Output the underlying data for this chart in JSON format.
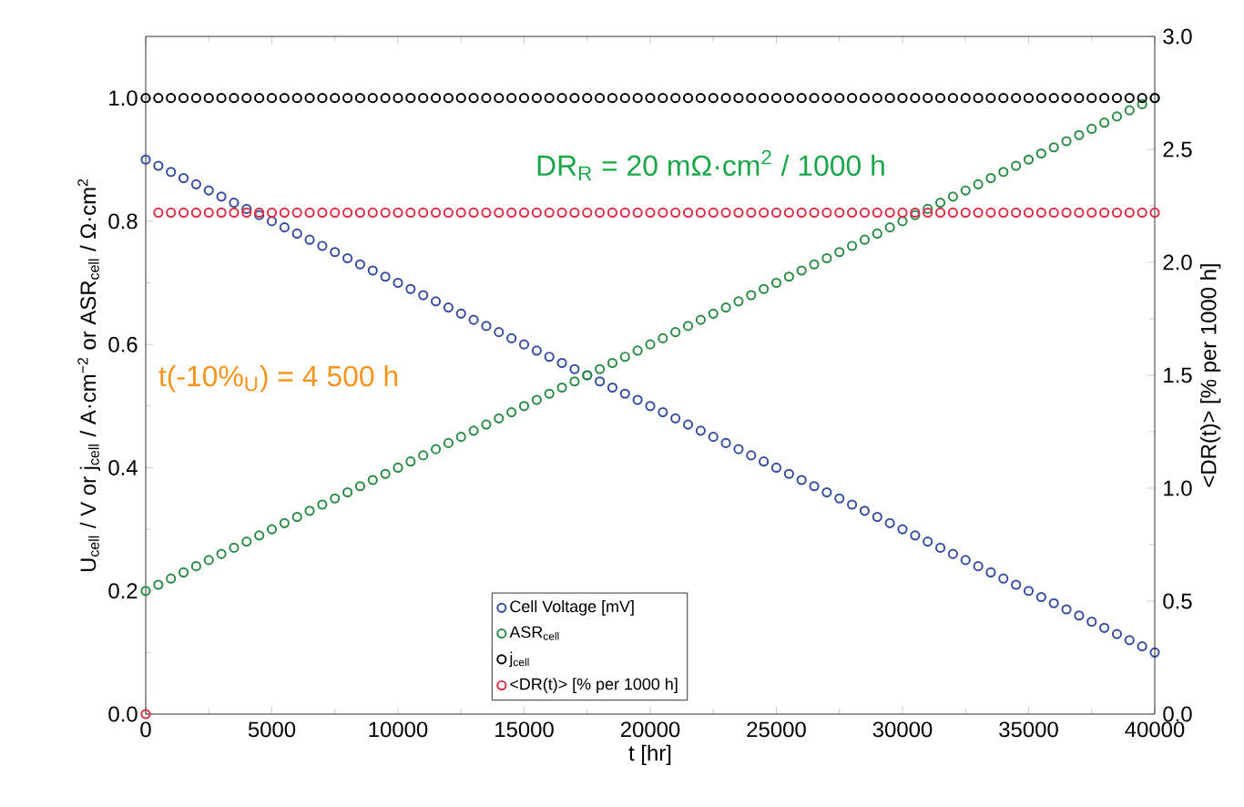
{
  "chart_data": {
    "type": "scatter",
    "xlabel": "t [hr]",
    "ylabel": "U$_{cell}$ / V or j$_{cell}$ / A·cm$^{−2}$ or  ASR$_{cell}$ / Ω·cm$^{2}$",
    "y2label": "<DR(t)> [% per 1000 h]",
    "x": [
      0,
      500,
      1000,
      1500,
      2000,
      2500,
      3000,
      3500,
      4000,
      4500,
      5000,
      5500,
      6000,
      6500,
      7000,
      7500,
      8000,
      8500,
      9000,
      9500,
      10000,
      10500,
      11000,
      11500,
      12000,
      12500,
      13000,
      13500,
      14000,
      14500,
      15000,
      15500,
      16000,
      16500,
      17000,
      17500,
      18000,
      18500,
      19000,
      19500,
      20000,
      20500,
      21000,
      21500,
      22000,
      22500,
      23000,
      23500,
      24000,
      24500,
      25000,
      25500,
      26000,
      26500,
      27000,
      27500,
      28000,
      28500,
      29000,
      29500,
      30000,
      30500,
      31000,
      31500,
      32000,
      32500,
      33000,
      33500,
      34000,
      34500,
      35000,
      35500,
      36000,
      36500,
      37000,
      37500,
      38000,
      38500,
      39000,
      39500,
      40000
    ],
    "series": [
      {
        "name": "Cell Voltage [mV]",
        "color": "#3a4ea0",
        "values": [
          0.9,
          0.89,
          0.88,
          0.87,
          0.86,
          0.85,
          0.84,
          0.83,
          0.82,
          0.81,
          0.8,
          0.79,
          0.78,
          0.77,
          0.76,
          0.75,
          0.74,
          0.73,
          0.72,
          0.71,
          0.7,
          0.69,
          0.68,
          0.67,
          0.66,
          0.65,
          0.64,
          0.63,
          0.62,
          0.61,
          0.6,
          0.59,
          0.58,
          0.57,
          0.56,
          0.55,
          0.54,
          0.53,
          0.52,
          0.51,
          0.5,
          0.49,
          0.48,
          0.47,
          0.46,
          0.45,
          0.44,
          0.43,
          0.42,
          0.41,
          0.4,
          0.39,
          0.38,
          0.37,
          0.36,
          0.35,
          0.34,
          0.33,
          0.32,
          0.31,
          0.3,
          0.29,
          0.28,
          0.27,
          0.26,
          0.25,
          0.24,
          0.23,
          0.22,
          0.21,
          0.2,
          0.19,
          0.18,
          0.17,
          0.16,
          0.15,
          0.14,
          0.13,
          0.12,
          0.11,
          0.1
        ]
      },
      {
        "name": "ASR$_{cell}$",
        "color": "#2e8b4a",
        "values": [
          0.2,
          0.21,
          0.22,
          0.23,
          0.24,
          0.25,
          0.26,
          0.27,
          0.28,
          0.29,
          0.3,
          0.31,
          0.32,
          0.33,
          0.34,
          0.35,
          0.36,
          0.37,
          0.38,
          0.39,
          0.4,
          0.41,
          0.42,
          0.43,
          0.44,
          0.45,
          0.46,
          0.47,
          0.48,
          0.49,
          0.5,
          0.51,
          0.52,
          0.53,
          0.54,
          0.55,
          0.56,
          0.57,
          0.58,
          0.59,
          0.6,
          0.61,
          0.62,
          0.63,
          0.64,
          0.65,
          0.66,
          0.67,
          0.68,
          0.69,
          0.7,
          0.71,
          0.72,
          0.73,
          0.74,
          0.75,
          0.76,
          0.77,
          0.78,
          0.79,
          0.8,
          0.81,
          0.82,
          0.83,
          0.84,
          0.85,
          0.86,
          0.87,
          0.88,
          0.89,
          0.9,
          0.91,
          0.92,
          0.93,
          0.94,
          0.95,
          0.96,
          0.97,
          0.98,
          0.99,
          1.0
        ]
      },
      {
        "name": "j$_{cell}$",
        "color": "#000000",
        "values": [
          1.0,
          1.0,
          1.0,
          1.0,
          1.0,
          1.0,
          1.0,
          1.0,
          1.0,
          1.0,
          1.0,
          1.0,
          1.0,
          1.0,
          1.0,
          1.0,
          1.0,
          1.0,
          1.0,
          1.0,
          1.0,
          1.0,
          1.0,
          1.0,
          1.0,
          1.0,
          1.0,
          1.0,
          1.0,
          1.0,
          1.0,
          1.0,
          1.0,
          1.0,
          1.0,
          1.0,
          1.0,
          1.0,
          1.0,
          1.0,
          1.0,
          1.0,
          1.0,
          1.0,
          1.0,
          1.0,
          1.0,
          1.0,
          1.0,
          1.0,
          1.0,
          1.0,
          1.0,
          1.0,
          1.0,
          1.0,
          1.0,
          1.0,
          1.0,
          1.0,
          1.0,
          1.0,
          1.0,
          1.0,
          1.0,
          1.0,
          1.0,
          1.0,
          1.0,
          1.0,
          1.0,
          1.0,
          1.0,
          1.0,
          1.0,
          1.0,
          1.0,
          1.0,
          1.0,
          1.0,
          1.0
        ]
      },
      {
        "name": "<DR(t)> [% per 1000 h]",
        "color": "#d9304a",
        "axis": "y2",
        "values": [
          0,
          2.22,
          2.22,
          2.22,
          2.22,
          2.22,
          2.22,
          2.22,
          2.22,
          2.22,
          2.22,
          2.22,
          2.22,
          2.22,
          2.22,
          2.22,
          2.22,
          2.22,
          2.22,
          2.22,
          2.22,
          2.22,
          2.22,
          2.22,
          2.22,
          2.22,
          2.22,
          2.22,
          2.22,
          2.22,
          2.22,
          2.22,
          2.22,
          2.22,
          2.22,
          2.22,
          2.22,
          2.22,
          2.22,
          2.22,
          2.22,
          2.22,
          2.22,
          2.22,
          2.22,
          2.22,
          2.22,
          2.22,
          2.22,
          2.22,
          2.22,
          2.22,
          2.22,
          2.22,
          2.22,
          2.22,
          2.22,
          2.22,
          2.22,
          2.22,
          2.22,
          2.22,
          2.22,
          2.22,
          2.22,
          2.22,
          2.22,
          2.22,
          2.22,
          2.22,
          2.22,
          2.22,
          2.22,
          2.22,
          2.22,
          2.22,
          2.22,
          2.22,
          2.22,
          2.22,
          2.22
        ]
      }
    ],
    "xlim": [
      0,
      40000
    ],
    "xticks": [
      0,
      5000,
      10000,
      15000,
      20000,
      25000,
      30000,
      35000,
      40000
    ],
    "ylim": [
      0,
      1.1
    ],
    "yticks": [
      {
        "value": 0,
        "label": "0.0"
      },
      {
        "value": 0.2,
        "label": "0.2"
      },
      {
        "value": 0.4,
        "label": "0.4"
      },
      {
        "value": 0.6,
        "label": "0.6"
      },
      {
        "value": 0.8,
        "label": "0.8"
      },
      {
        "value": 1.0,
        "label": "1.0"
      }
    ],
    "y2lim": [
      0,
      3.0
    ],
    "y2ticks": [
      {
        "value": 0,
        "label": "0.0"
      },
      {
        "value": 0.5,
        "label": "0.5"
      },
      {
        "value": 1.0,
        "label": "1.0"
      },
      {
        "value": 1.5,
        "label": "1.5"
      },
      {
        "value": 2.0,
        "label": "2.0"
      },
      {
        "value": 2.5,
        "label": "2.5"
      },
      {
        "value": 3.0,
        "label": "3.0"
      }
    ],
    "annotations": [
      "DR$_{R}$ = 20 mΩ·cm$^{2}$ / 1000 h",
      "t(-10%$_{U}$) = 4 500 h"
    ],
    "marker": "circle",
    "legend": "bottom",
    "grid": false
  }
}
